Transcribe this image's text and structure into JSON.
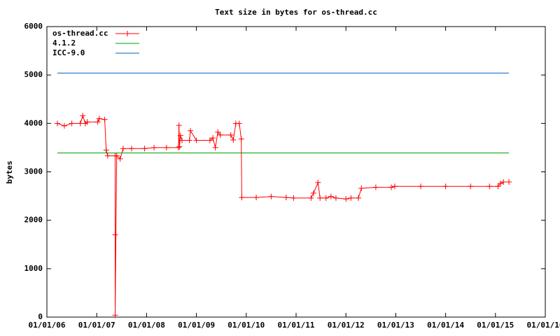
{
  "chart_data": {
    "type": "line",
    "title": "Text size in bytes for os-thread.cc",
    "y_label": "bytes",
    "xlim": [
      2006,
      2016
    ],
    "xticks": [
      {
        "value": 2006,
        "label": "01/01/06"
      },
      {
        "value": 2007,
        "label": "01/01/07"
      },
      {
        "value": 2008,
        "label": "01/01/08"
      },
      {
        "value": 2009,
        "label": "01/01/09"
      },
      {
        "value": 2010,
        "label": "01/01/10"
      },
      {
        "value": 2011,
        "label": "01/01/11"
      },
      {
        "value": 2012,
        "label": "01/01/12"
      },
      {
        "value": 2013,
        "label": "01/01/13"
      },
      {
        "value": 2014,
        "label": "01/01/14"
      },
      {
        "value": 2015,
        "label": "01/01/15"
      },
      {
        "value": 2016,
        "label": "01/01/16"
      }
    ],
    "ylim": [
      0,
      6000
    ],
    "yticks": [
      0,
      1000,
      2000,
      3000,
      4000,
      5000,
      6000
    ],
    "grid": false,
    "legend": "top-left",
    "series": [
      {
        "name": "os-thread.cc",
        "color": "#ff0000",
        "markers": true,
        "x": [
          2006.21,
          2006.35,
          2006.5,
          2006.67,
          2006.72,
          2006.77,
          2006.81,
          2007.02,
          2007.05,
          2007.16,
          2007.19,
          2007.22,
          2007.37,
          2007.37,
          2007.37,
          2007.4,
          2007.47,
          2007.53,
          2007.7,
          2007.96,
          2008.15,
          2008.4,
          2008.64,
          2008.65,
          2008.66,
          2008.68,
          2008.71,
          2008.86,
          2008.88,
          2009.0,
          2009.27,
          2009.33,
          2009.38,
          2009.43,
          2009.48,
          2009.69,
          2009.74,
          2009.79,
          2009.86,
          2009.9,
          2009.91,
          2010.2,
          2010.5,
          2010.8,
          2010.95,
          2011.3,
          2011.35,
          2011.44,
          2011.48,
          2011.6,
          2011.7,
          2011.8,
          2012.0,
          2012.1,
          2012.25,
          2012.31,
          2012.6,
          2012.91,
          2012.98,
          2013.5,
          2014.0,
          2014.5,
          2014.88,
          2015.05,
          2015.1,
          2015.16,
          2015.27
        ],
        "values": [
          4000,
          3950,
          4000,
          4000,
          4160,
          4000,
          4030,
          4030,
          4100,
          4080,
          3450,
          3330,
          3330,
          1700,
          40,
          3330,
          3270,
          3480,
          3480,
          3480,
          3500,
          3500,
          3500,
          3960,
          3520,
          3750,
          3650,
          3650,
          3850,
          3650,
          3650,
          3700,
          3500,
          3820,
          3760,
          3760,
          3660,
          4000,
          4000,
          3680,
          2470,
          2470,
          2490,
          2470,
          2460,
          2460,
          2560,
          2780,
          2460,
          2460,
          2490,
          2460,
          2440,
          2460,
          2460,
          2660,
          2680,
          2680,
          2700,
          2700,
          2700,
          2700,
          2700,
          2700,
          2760,
          2790,
          2790
        ]
      },
      {
        "name": "4.1.2",
        "color": "#00a000",
        "markers": false,
        "x": [
          2006.21,
          2015.27
        ],
        "values": [
          3390,
          3390
        ]
      },
      {
        "name": "ICC-9.0",
        "color": "#0060c0",
        "markers": false,
        "x": [
          2006.21,
          2015.27
        ],
        "values": [
          5040,
          5040
        ]
      }
    ]
  }
}
